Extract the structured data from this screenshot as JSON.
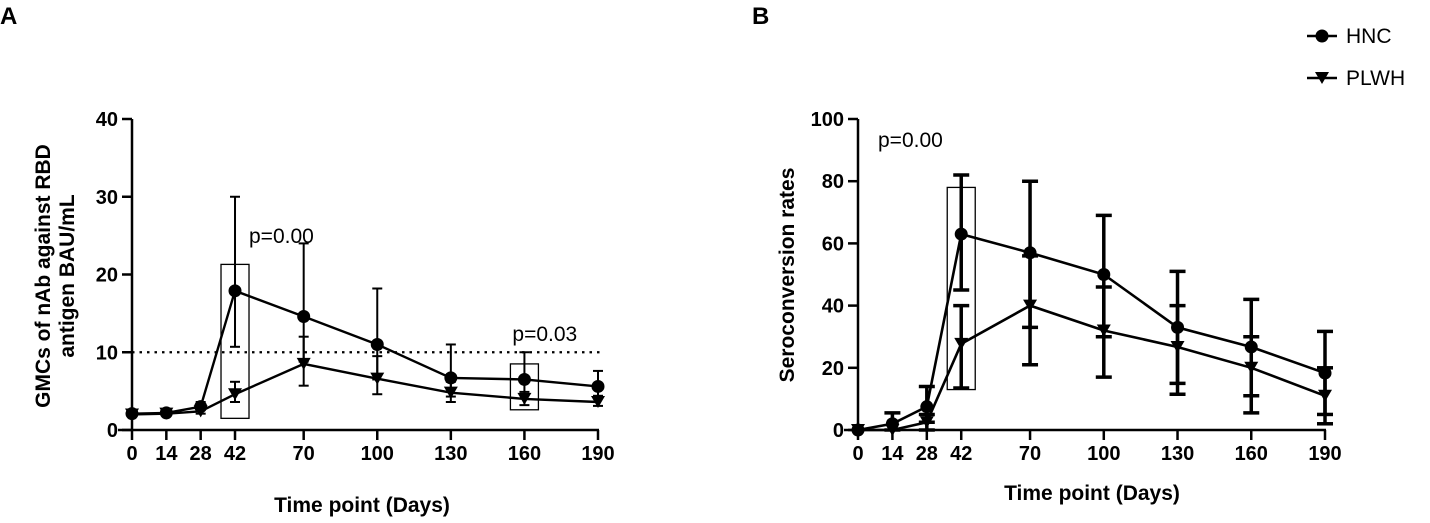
{
  "legend": {
    "series": [
      {
        "name": "HNC",
        "marker": "circle"
      },
      {
        "name": "PLWH",
        "marker": "triangle-down"
      }
    ]
  },
  "chart_data": [
    {
      "panel": "A",
      "type": "line",
      "xlabel": "Time point (Days)",
      "ylabel_line1": "GMCs of nAb against RBD",
      "ylabel_line2": "antigen  BAU/mL",
      "ylim": [
        0,
        40
      ],
      "yticks": [
        0,
        10,
        20,
        30,
        40
      ],
      "x": [
        0,
        14,
        28,
        42,
        70,
        100,
        130,
        160,
        190
      ],
      "reference_line": 10,
      "series": [
        {
          "name": "HNC",
          "marker": "circle",
          "values": [
            2.1,
            2.2,
            3.0,
            17.9,
            14.6,
            11.0,
            6.7,
            6.5,
            5.6
          ],
          "err_low": [
            1.8,
            1.9,
            2.6,
            10.7,
            8.8,
            6.5,
            4.3,
            4.6,
            4.4
          ],
          "err_high": [
            2.5,
            2.6,
            3.6,
            30.0,
            24.0,
            18.2,
            11.0,
            10.0,
            7.6
          ]
        },
        {
          "name": "PLWH",
          "marker": "triangle-down",
          "values": [
            2.0,
            2.1,
            2.4,
            4.6,
            8.5,
            6.6,
            4.8,
            4.0,
            3.6
          ],
          "err_low": [
            1.8,
            1.9,
            2.1,
            3.6,
            5.7,
            4.6,
            3.6,
            3.2,
            3.1
          ],
          "err_high": [
            2.3,
            2.5,
            2.8,
            6.2,
            12.0,
            9.5,
            6.2,
            4.9,
            4.2
          ]
        }
      ],
      "annotations": [
        {
          "text": "p=0.00",
          "x": 42
        },
        {
          "text": "p=0.03",
          "x": 160
        }
      ],
      "boxes": [
        {
          "x": 42,
          "y_range": [
            1.5,
            21.3
          ]
        },
        {
          "x": 160,
          "y_range": [
            2.6,
            8.5
          ]
        }
      ]
    },
    {
      "panel": "B",
      "type": "line",
      "xlabel": "Time point (Days)",
      "ylabel": "Seroconversion rates",
      "ylim": [
        0,
        100
      ],
      "yticks": [
        0,
        20,
        40,
        60,
        80,
        100
      ],
      "x": [
        0,
        14,
        28,
        42,
        70,
        100,
        130,
        160,
        190
      ],
      "series": [
        {
          "name": "HNC",
          "marker": "circle",
          "values": [
            0,
            2,
            7.5,
            63,
            57,
            50,
            33,
            26.7,
            18.3
          ],
          "err_low": [
            0,
            0,
            2.5,
            45,
            33,
            30,
            15,
            11,
            5
          ],
          "err_high": [
            0,
            5.5,
            14,
            82,
            80,
            69,
            51,
            42,
            31.7
          ]
        },
        {
          "name": "PLWH",
          "marker": "triangle-down",
          "values": [
            0,
            0,
            2.5,
            27.7,
            40,
            32,
            26.7,
            20,
            11
          ],
          "err_low": [
            0,
            0,
            0,
            13.5,
            21,
            17,
            11.5,
            5.5,
            2
          ],
          "err_high": [
            0,
            0,
            5,
            40,
            56,
            46,
            40,
            30,
            20
          ]
        }
      ],
      "annotations": [
        {
          "text": "p=0.00",
          "x": 14
        }
      ],
      "boxes": [
        {
          "x": 42,
          "y_range": [
            13,
            78
          ]
        }
      ]
    }
  ]
}
